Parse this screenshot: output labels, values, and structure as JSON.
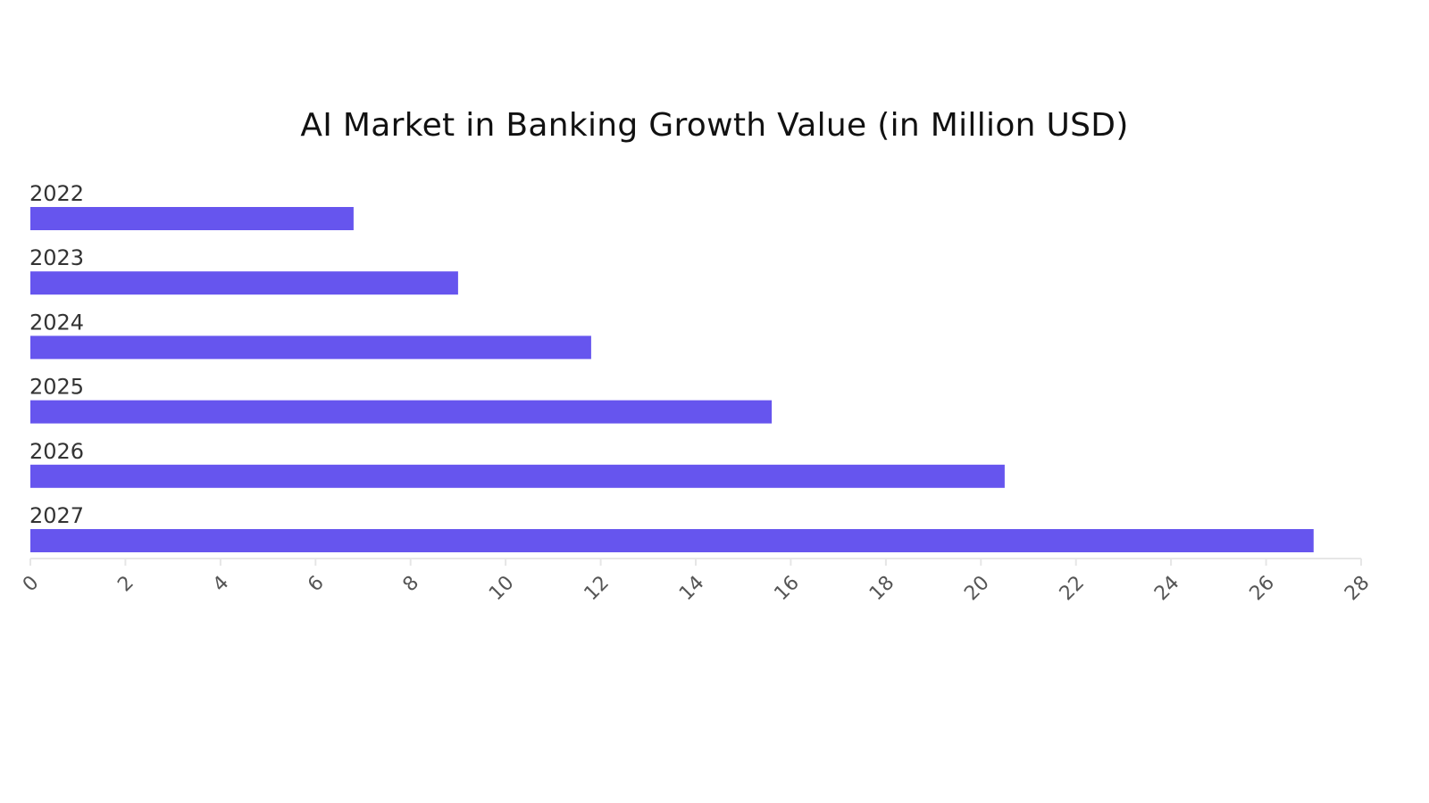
{
  "chart_data": {
    "type": "bar",
    "orientation": "horizontal",
    "title": "AI Market in Banking Growth Value (in Million USD)",
    "xlabel": "",
    "ylabel": "",
    "categories": [
      "2022",
      "2023",
      "2024",
      "2025",
      "2026",
      "2027"
    ],
    "values": [
      6.8,
      9.0,
      11.8,
      15.6,
      20.5,
      27.0
    ],
    "xlim": [
      0,
      28
    ],
    "xticks": [
      "0",
      "2",
      "4",
      "6",
      "8",
      "10",
      "12",
      "14",
      "16",
      "18",
      "20",
      "22",
      "24",
      "26",
      "28"
    ],
    "grid": false,
    "legend": "none",
    "bar_color": "#6655ee",
    "axis_color": "#e6e6e6"
  }
}
